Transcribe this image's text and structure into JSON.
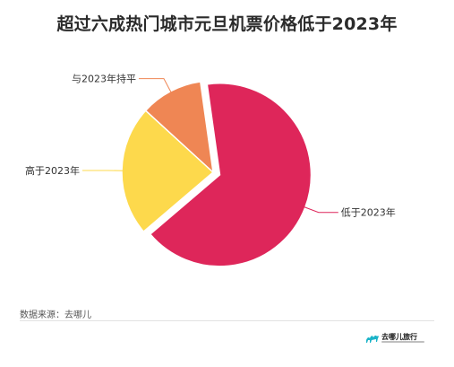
{
  "chart_data": {
    "type": "pie",
    "title": "超过六成热门城市元旦机票价格低于2023年",
    "slices": [
      {
        "label": "低于2023年",
        "value": 66,
        "color": "#de265a",
        "exploded": true
      },
      {
        "label": "高于2023年",
        "value": 23,
        "color": "#fdd94c",
        "exploded": false
      },
      {
        "label": "与2023年持平",
        "value": 11,
        "color": "#ef8654",
        "exploded": false
      }
    ],
    "legend": "none",
    "label_placement": "outside with leader lines"
  },
  "footer": {
    "source": "数据来源：去哪儿"
  },
  "logo": {
    "text": "去哪儿旅行",
    "icon": "camel-icon",
    "color": "#1ab3c8"
  }
}
